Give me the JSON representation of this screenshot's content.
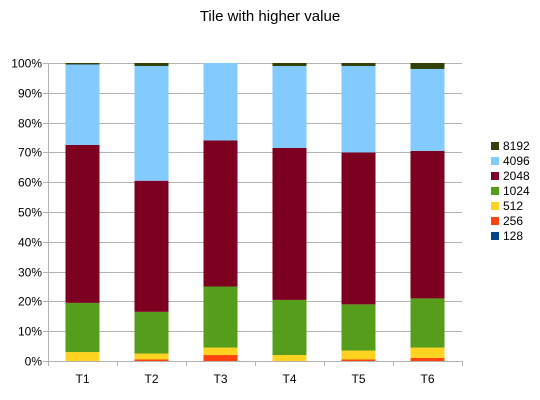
{
  "chart_data": {
    "type": "bar",
    "stacked": true,
    "percent": true,
    "title": "Tile with higher value",
    "categories": [
      "T1",
      "T2",
      "T3",
      "T4",
      "T5",
      "T6"
    ],
    "ylim": [
      0,
      100
    ],
    "yticks": [
      "0%",
      "10%",
      "20%",
      "30%",
      "40%",
      "50%",
      "60%",
      "70%",
      "80%",
      "90%",
      "100%"
    ],
    "legend_position": "right",
    "series": [
      {
        "name": "128",
        "color": "#004586",
        "values": [
          0.0,
          0.0,
          0.0,
          0.0,
          0.0,
          0.0
        ]
      },
      {
        "name": "256",
        "color": "#ff420e",
        "values": [
          0.0,
          0.5,
          2.0,
          0.0,
          0.5,
          1.0
        ]
      },
      {
        "name": "512",
        "color": "#ffd320",
        "values": [
          3.0,
          2.0,
          2.5,
          2.0,
          3.0,
          3.5
        ]
      },
      {
        "name": "1024",
        "color": "#579d1c",
        "values": [
          16.5,
          14.0,
          20.5,
          18.5,
          15.5,
          16.5
        ]
      },
      {
        "name": "2048",
        "color": "#7e0021",
        "values": [
          53.0,
          44.0,
          49.0,
          51.0,
          51.0,
          49.5
        ]
      },
      {
        "name": "4096",
        "color": "#83caff",
        "values": [
          27.0,
          38.5,
          26.0,
          27.5,
          29.0,
          27.5
        ]
      },
      {
        "name": "8192",
        "color": "#314004",
        "values": [
          0.5,
          1.0,
          0.0,
          1.0,
          1.0,
          2.0
        ]
      }
    ]
  }
}
